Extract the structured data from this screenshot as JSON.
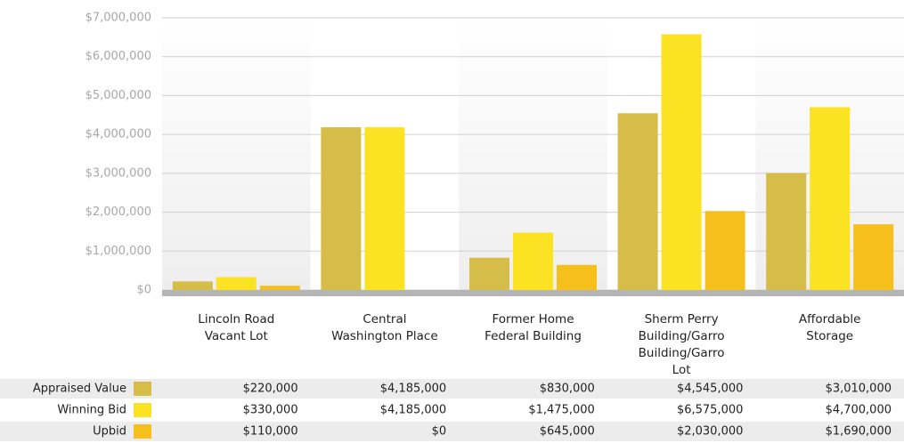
{
  "chart_data": {
    "type": "bar",
    "categories": [
      "Lincoln Road Vacant Lot",
      "Central Washington Place",
      "Former Home Federal Building",
      "Sherm Perry Building/Garro Building/Garro Lot",
      "Affordable Storage"
    ],
    "series": [
      {
        "name": "Appraised Value",
        "color": "#d6bd4a",
        "values": [
          220000,
          4185000,
          830000,
          4545000,
          3010000
        ],
        "value_labels": [
          "$220,000",
          "$4,185,000",
          "$830,000",
          "$4,545,000",
          "$3,010,000"
        ]
      },
      {
        "name": "Winning Bid",
        "color": "#fbe223",
        "values": [
          330000,
          4185000,
          1475000,
          6575000,
          4700000
        ],
        "value_labels": [
          "$330,000",
          "$4,185,000",
          "$1,475,000",
          "$6,575,000",
          "$4,700,000"
        ]
      },
      {
        "name": "Upbid",
        "color": "#f6c01c",
        "values": [
          110000,
          0,
          645000,
          2030000,
          1690000
        ],
        "value_labels": [
          "$110,000",
          "$0",
          "$645,000",
          "$2,030,000",
          "$1,690,000"
        ]
      }
    ],
    "ylim": [
      0,
      7000000
    ],
    "yticks": [
      {
        "value": 0,
        "label": "$0"
      },
      {
        "value": 1000000,
        "label": "$1,000,000"
      },
      {
        "value": 2000000,
        "label": "$2,000,000"
      },
      {
        "value": 3000000,
        "label": "$3,000,000"
      },
      {
        "value": 4000000,
        "label": "$4,000,000"
      },
      {
        "value": 5000000,
        "label": "$5,000,000"
      },
      {
        "value": 6000000,
        "label": "$6,000,000"
      },
      {
        "value": 7000000,
        "label": "$7,000,000"
      }
    ],
    "grid": true
  }
}
